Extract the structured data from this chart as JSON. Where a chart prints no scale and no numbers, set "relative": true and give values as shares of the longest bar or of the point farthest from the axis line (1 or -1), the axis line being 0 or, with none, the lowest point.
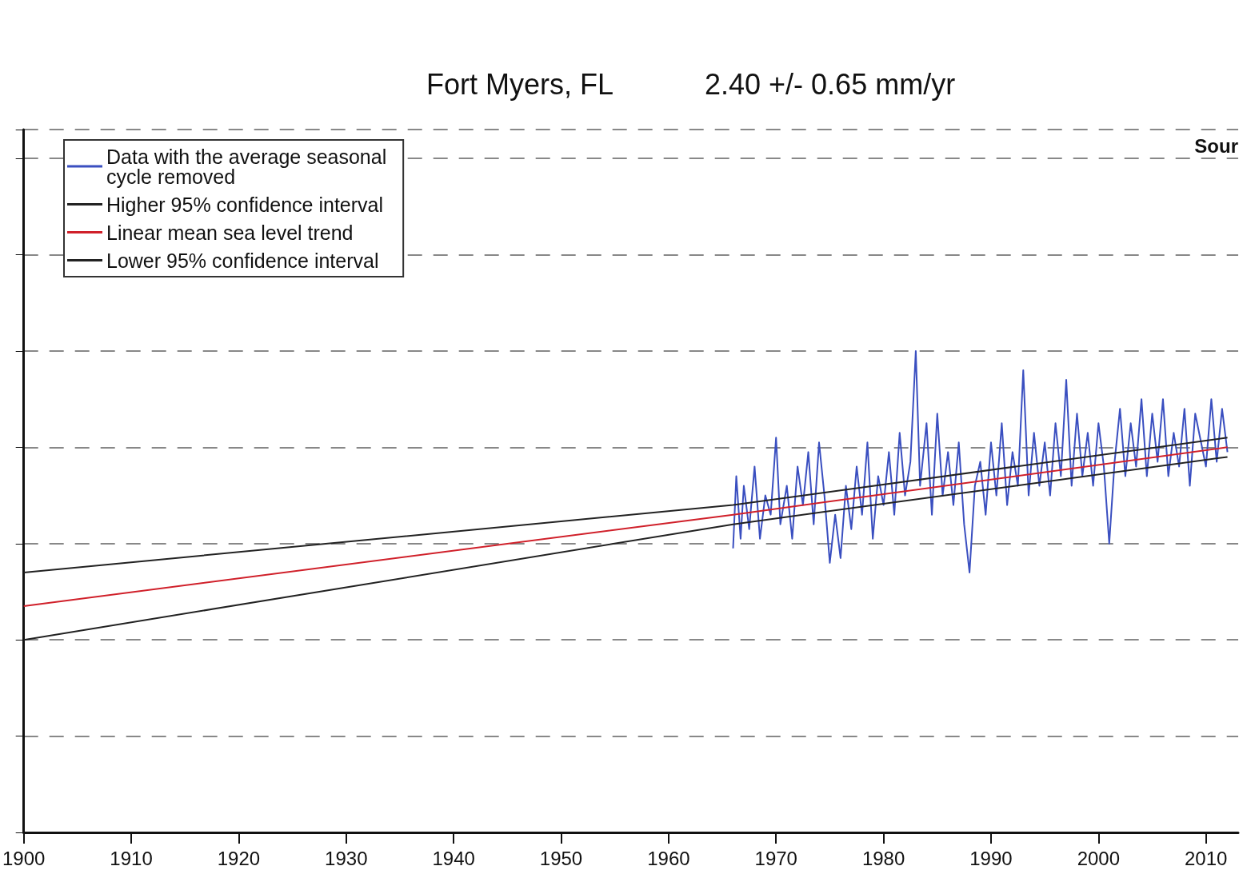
{
  "chart_data": {
    "type": "line",
    "title": "Fort Myers, FL",
    "subtitle": "2.40 +/- 0.65 mm/yr",
    "annotations": [
      "Sour"
    ],
    "relative": true,
    "xlim": [
      1900,
      2013
    ],
    "xticks": [
      1900,
      1910,
      1920,
      1930,
      1940,
      1950,
      1960,
      1970,
      1980,
      1990,
      2000,
      2010
    ],
    "grid": "y",
    "legend": "top left",
    "marker": "none",
    "line_style": "solid",
    "tick_labels": "x",
    "series": [
      {
        "name": "Data with the average seasonal cycle removed",
        "color": "#3a4fc0",
        "x": [
          1966,
          1966.3,
          1966.7,
          1967,
          1967.5,
          1968,
          1968.5,
          1969,
          1969.5,
          1970,
          1970.4,
          1971,
          1971.5,
          1972,
          1972.5,
          1973,
          1973.5,
          1974,
          1974.5,
          1975,
          1975.5,
          1976,
          1976.5,
          1977,
          1977.5,
          1978,
          1978.5,
          1979,
          1979.5,
          1980,
          1980.5,
          1981,
          1981.5,
          1982,
          1982.5,
          1983,
          1983.4,
          1984,
          1984.5,
          1985,
          1985.5,
          1986,
          1986.5,
          1987,
          1987.5,
          1988,
          1988.5,
          1989,
          1989.5,
          1990,
          1990.5,
          1991,
          1991.5,
          1992,
          1992.5,
          1993,
          1993.5,
          1994,
          1994.5,
          1995,
          1995.5,
          1996,
          1996.5,
          1997,
          1997.5,
          1998,
          1998.5,
          1999,
          1999.5,
          2000,
          2000.5,
          2001,
          2001.5,
          2002,
          2002.5,
          2003,
          2003.5,
          2004,
          2004.5,
          2005,
          2005.5,
          2006,
          2006.5,
          2007,
          2007.5,
          2008,
          2008.5,
          2009,
          2010,
          2010.5,
          2011,
          2011.5,
          2012
        ],
        "values": [
          0.59,
          0.74,
          0.61,
          0.72,
          0.63,
          0.76,
          0.61,
          0.7,
          0.66,
          0.82,
          0.64,
          0.72,
          0.61,
          0.76,
          0.68,
          0.79,
          0.64,
          0.81,
          0.7,
          0.56,
          0.66,
          0.57,
          0.72,
          0.63,
          0.76,
          0.66,
          0.81,
          0.61,
          0.74,
          0.68,
          0.79,
          0.66,
          0.83,
          0.7,
          0.77,
          1,
          0.72,
          0.85,
          0.66,
          0.87,
          0.7,
          0.79,
          0.68,
          0.81,
          0.64,
          0.54,
          0.72,
          0.77,
          0.66,
          0.81,
          0.7,
          0.85,
          0.68,
          0.79,
          0.72,
          0.96,
          0.7,
          0.83,
          0.72,
          0.81,
          0.7,
          0.85,
          0.74,
          0.94,
          0.72,
          0.87,
          0.74,
          0.83,
          0.72,
          0.85,
          0.76,
          0.6,
          0.77,
          0.88,
          0.74,
          0.85,
          0.76,
          0.9,
          0.74,
          0.87,
          0.77,
          0.9,
          0.74,
          0.83,
          0.76,
          0.88,
          0.72,
          0.87,
          0.76,
          0.9,
          0.77,
          0.88,
          0.79
        ]
      },
      {
        "name": "Higher 95% confidence interval",
        "color": "#222222",
        "x": [
          1900,
          1966,
          2012
        ],
        "values": [
          0.54,
          0.68,
          0.82
        ]
      },
      {
        "name": "Linear mean sea level trend",
        "color": "#d0202a",
        "x": [
          1900,
          1966,
          2012
        ],
        "values": [
          0.47,
          0.66,
          0.8
        ]
      },
      {
        "name": "Lower 95% confidence interval",
        "color": "#222222",
        "x": [
          1900,
          1966,
          2012
        ],
        "values": [
          0.4,
          0.64,
          0.78
        ]
      }
    ]
  }
}
